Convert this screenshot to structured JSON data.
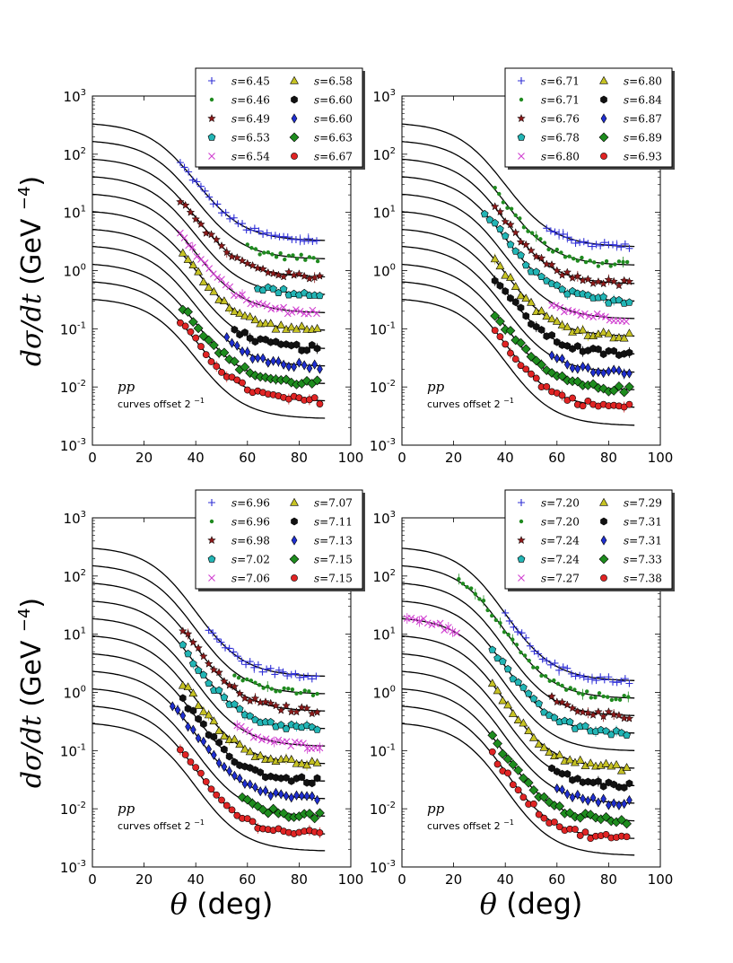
{
  "figure": {
    "ylabel": "dσ/dt (GeV",
    "ylabel_exp": "−4",
    "xlabel": "θ (deg)"
  },
  "chart_data": [
    {
      "type": "scatter",
      "panel": "top-left",
      "annotation": "pp",
      "annotation2": "curves offset 2",
      "annotation2_exp": "−1",
      "xlim": [
        0,
        100
      ],
      "ylim_log10": [
        -3,
        3
      ],
      "x_ticks": [
        "0",
        "20",
        "40",
        "60",
        "80",
        "100"
      ],
      "y_ticks": [
        {
          "base": "10",
          "exp": "-3"
        },
        {
          "base": "10",
          "exp": "-2"
        },
        {
          "base": "10",
          "exp": "-1"
        },
        {
          "base": "10",
          "exp": "0"
        },
        {
          "base": "10",
          "exp": "1"
        },
        {
          "base": "10",
          "exp": "2"
        },
        {
          "base": "10",
          "exp": "3"
        }
      ],
      "legend": [
        "s=6.45",
        "s=6.46",
        "s=6.49",
        "s=6.53",
        "s=6.54",
        "s=6.58",
        "s=6.60",
        "s=6.60",
        "s=6.63",
        "s=6.67"
      ],
      "curves_at_0deg": [
        330,
        165,
        82,
        41,
        20.5,
        10.3,
        5.1,
        2.6,
        1.28,
        0.64,
        0.32
      ],
      "curves_plateau": [
        3.3,
        1.6,
        0.78,
        0.39,
        0.19,
        0.095,
        0.046,
        0.023,
        0.0115,
        0.0058,
        0.0029
      ],
      "series": [
        {
          "name": "s=6.45",
          "x_range": [
            34,
            88
          ],
          "plateau": 3.3
        },
        {
          "name": "s=6.46",
          "x_range": [
            60,
            88
          ],
          "plateau": 1.6
        },
        {
          "name": "s=6.49",
          "x_range": [
            34,
            88
          ],
          "plateau": 0.78
        },
        {
          "name": "s=6.53",
          "x_range": [
            64,
            88
          ],
          "plateau": 0.39
        },
        {
          "name": "s=6.54",
          "x_range": [
            34,
            88
          ],
          "plateau": 0.19
        },
        {
          "name": "s=6.58",
          "x_range": [
            35,
            88
          ],
          "plateau": 0.095
        },
        {
          "name": "s=6.60",
          "x_range": [
            55,
            88
          ],
          "plateau": 0.046
        },
        {
          "name": "s=6.60",
          "x_range": [
            52,
            88
          ],
          "plateau": 0.023
        },
        {
          "name": "s=6.63",
          "x_range": [
            35,
            88
          ],
          "plateau": 0.0115
        },
        {
          "name": "s=6.67",
          "x_range": [
            34,
            88
          ],
          "plateau": 0.0058
        }
      ]
    },
    {
      "type": "scatter",
      "panel": "top-right",
      "annotation": "pp",
      "annotation2": "curves offset 2",
      "annotation2_exp": "−1",
      "xlim": [
        0,
        100
      ],
      "ylim_log10": [
        -3,
        3
      ],
      "x_ticks": [
        "0",
        "20",
        "40",
        "60",
        "80",
        "100"
      ],
      "y_ticks": [
        {
          "base": "10",
          "exp": "-3"
        },
        {
          "base": "10",
          "exp": "-2"
        },
        {
          "base": "10",
          "exp": "-1"
        },
        {
          "base": "10",
          "exp": "0"
        },
        {
          "base": "10",
          "exp": "1"
        },
        {
          "base": "10",
          "exp": "2"
        },
        {
          "base": "10",
          "exp": "3"
        }
      ],
      "legend": [
        "s=6.71",
        "s=6.71",
        "s=6.76",
        "s=6.78",
        "s=6.80",
        "s=6.80",
        "s=6.84",
        "s=6.87",
        "s=6.89",
        "s=6.93"
      ],
      "curves_at_0deg": [
        330,
        165,
        82,
        41,
        20.5,
        10.3,
        5.1,
        2.6,
        1.28,
        0.64,
        0.32
      ],
      "curves_plateau": [
        2.6,
        1.25,
        0.6,
        0.3,
        0.15,
        0.075,
        0.037,
        0.018,
        0.009,
        0.0045,
        0.0022
      ],
      "series": [
        {
          "name": "s=6.71",
          "x_range": [
            56,
            88
          ],
          "plateau": 2.6
        },
        {
          "name": "s=6.71",
          "x_range": [
            36,
            88
          ],
          "plateau": 1.25
        },
        {
          "name": "s=6.76",
          "x_range": [
            36,
            88
          ],
          "plateau": 0.6
        },
        {
          "name": "s=6.78",
          "x_range": [
            32,
            88
          ],
          "plateau": 0.3
        },
        {
          "name": "s=6.80",
          "x_range": [
            58,
            88
          ],
          "plateau": 0.15
        },
        {
          "name": "s=6.80",
          "x_range": [
            36,
            88
          ],
          "plateau": 0.075
        },
        {
          "name": "s=6.84",
          "x_range": [
            36,
            88
          ],
          "plateau": 0.037
        },
        {
          "name": "s=6.87",
          "x_range": [
            58,
            88
          ],
          "plateau": 0.018
        },
        {
          "name": "s=6.89",
          "x_range": [
            36,
            88
          ],
          "plateau": 0.009
        },
        {
          "name": "s=6.93",
          "x_range": [
            36,
            88
          ],
          "plateau": 0.0045
        }
      ]
    },
    {
      "type": "scatter",
      "panel": "bottom-left",
      "annotation": "pp",
      "annotation2": "curves offset 2",
      "annotation2_exp": "−1",
      "xlim": [
        0,
        100
      ],
      "ylim_log10": [
        -3,
        3
      ],
      "x_ticks": [
        "0",
        "20",
        "40",
        "60",
        "80",
        "100"
      ],
      "y_ticks": [
        {
          "base": "10",
          "exp": "-3"
        },
        {
          "base": "10",
          "exp": "-2"
        },
        {
          "base": "10",
          "exp": "-1"
        },
        {
          "base": "10",
          "exp": "0"
        },
        {
          "base": "10",
          "exp": "1"
        },
        {
          "base": "10",
          "exp": "2"
        },
        {
          "base": "10",
          "exp": "3"
        }
      ],
      "legend": [
        "s=6.96",
        "s=6.96",
        "s=6.98",
        "s=7.02",
        "s=7.06",
        "s=7.07",
        "s=7.11",
        "s=7.13",
        "s=7.15",
        "s=7.15"
      ],
      "curves_at_0deg": [
        300,
        150,
        75,
        37,
        18.5,
        9.3,
        4.6,
        2.3,
        1.15,
        0.58,
        0.29
      ],
      "curves_plateau": [
        1.9,
        0.95,
        0.48,
        0.24,
        0.12,
        0.06,
        0.03,
        0.015,
        0.0075,
        0.0037,
        0.0019
      ],
      "series": [
        {
          "name": "s=6.96",
          "x_range": [
            45,
            88
          ],
          "plateau": 1.9
        },
        {
          "name": "s=6.96",
          "x_range": [
            55,
            88
          ],
          "plateau": 0.95
        },
        {
          "name": "s=6.98",
          "x_range": [
            35,
            88
          ],
          "plateau": 0.48
        },
        {
          "name": "s=7.02",
          "x_range": [
            35,
            88
          ],
          "plateau": 0.24
        },
        {
          "name": "s=7.06",
          "x_range": [
            56,
            88
          ],
          "plateau": 0.12
        },
        {
          "name": "s=7.07",
          "x_range": [
            35,
            88
          ],
          "plateau": 0.06
        },
        {
          "name": "s=7.11",
          "x_range": [
            35,
            88
          ],
          "plateau": 0.03
        },
        {
          "name": "s=7.13",
          "x_range": [
            31,
            88
          ],
          "plateau": 0.015
        },
        {
          "name": "s=7.15",
          "x_range": [
            58,
            88
          ],
          "plateau": 0.0075
        },
        {
          "name": "s=7.15",
          "x_range": [
            34,
            88
          ],
          "plateau": 0.0037
        }
      ]
    },
    {
      "type": "scatter",
      "panel": "bottom-right",
      "annotation": "pp",
      "annotation2": "curves offset 2",
      "annotation2_exp": "−1",
      "xlim": [
        0,
        100
      ],
      "ylim_log10": [
        -3,
        3
      ],
      "x_ticks": [
        "0",
        "20",
        "40",
        "60",
        "80",
        "100"
      ],
      "y_ticks": [
        {
          "base": "10",
          "exp": "-3"
        },
        {
          "base": "10",
          "exp": "-2"
        },
        {
          "base": "10",
          "exp": "-1"
        },
        {
          "base": "10",
          "exp": "0"
        },
        {
          "base": "10",
          "exp": "1"
        },
        {
          "base": "10",
          "exp": "2"
        },
        {
          "base": "10",
          "exp": "3"
        }
      ],
      "legend": [
        "s=7.20",
        "s=7.20",
        "s=7.24",
        "s=7.24",
        "s=7.27",
        "s=7.29",
        "s=7.31",
        "s=7.31",
        "s=7.33",
        "s=7.38"
      ],
      "curves_at_0deg": [
        300,
        150,
        75,
        37,
        18.5,
        9.3,
        4.6,
        2.3,
        1.15,
        0.58,
        0.29
      ],
      "curves_plateau": [
        1.6,
        0.8,
        0.4,
        0.2,
        0.1,
        0.05,
        0.025,
        0.0125,
        0.0062,
        0.0031,
        0.0016
      ],
      "series": [
        {
          "name": "s=7.20",
          "x_range": [
            40,
            88
          ],
          "plateau": 1.6
        },
        {
          "name": "s=7.20",
          "x_range": [
            22,
            88
          ],
          "plateau": 0.8
        },
        {
          "name": "s=7.24",
          "x_range": [
            58,
            88
          ],
          "plateau": 0.4
        },
        {
          "name": "s=7.24",
          "x_range": [
            35,
            88
          ],
          "plateau": 0.2
        },
        {
          "name": "s=7.27",
          "x_range": [
            2,
            22
          ],
          "plateau": 0.1
        },
        {
          "name": "s=7.29",
          "x_range": [
            35,
            88
          ],
          "plateau": 0.05
        },
        {
          "name": "s=7.31",
          "x_range": [
            58,
            88
          ],
          "plateau": 0.025
        },
        {
          "name": "s=7.31",
          "x_range": [
            60,
            88
          ],
          "plateau": 0.0125
        },
        {
          "name": "s=7.33",
          "x_range": [
            35,
            88
          ],
          "plateau": 0.0062
        },
        {
          "name": "s=7.38",
          "x_range": [
            35,
            88
          ],
          "plateau": 0.0031
        }
      ]
    }
  ],
  "markers": [
    {
      "shape": "plus",
      "color": "#2f2fd6"
    },
    {
      "shape": "dot",
      "color": "#1f8a1f"
    },
    {
      "shape": "star",
      "color": "#8b1a1a"
    },
    {
      "shape": "pentagon",
      "color": "#22b5b5"
    },
    {
      "shape": "x",
      "color": "#d040d0"
    },
    {
      "shape": "triangle",
      "color": "#c6c224"
    },
    {
      "shape": "hexagon",
      "color": "#111111"
    },
    {
      "shape": "diamond",
      "color": "#1f2fd0"
    },
    {
      "shape": "bigdiamond",
      "color": "#1e8c1e"
    },
    {
      "shape": "circle",
      "color": "#e02424"
    }
  ]
}
